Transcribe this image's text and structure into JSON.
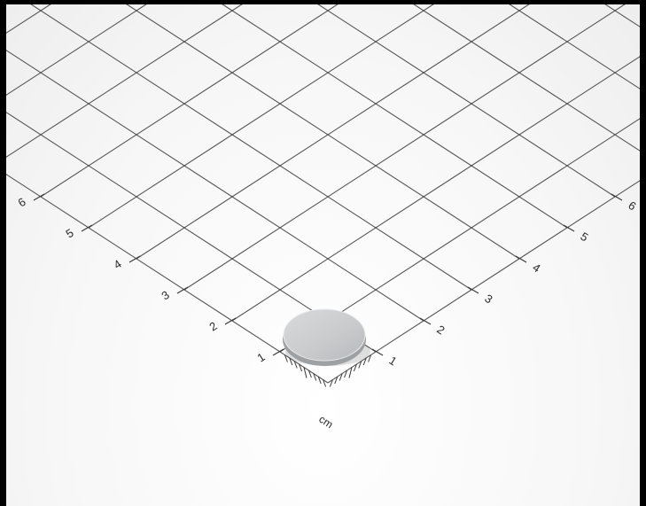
{
  "scene": {
    "description_free": true,
    "unit": "cm",
    "left_axis_labels": [
      "1",
      "2",
      "3",
      "4",
      "5",
      "6"
    ],
    "right_axis_labels": [
      "1",
      "2",
      "3",
      "4",
      "5",
      "6"
    ],
    "colors": {
      "frame": "#000000",
      "paper": "#f7f7f7",
      "grid_line": "#3a3a3a",
      "magnet_face": "#c9cbcd",
      "magnet_edge": "#9ea1a4"
    }
  }
}
